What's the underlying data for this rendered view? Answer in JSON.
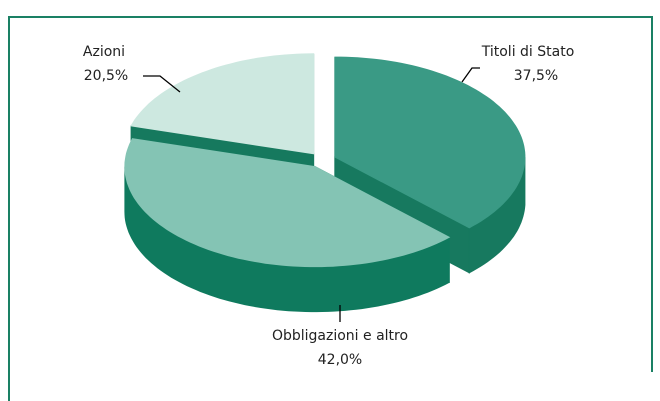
{
  "chart_data": {
    "type": "pie",
    "categories": [
      "Titoli di Stato",
      "Obbligazioni e altro",
      "Azioni"
    ],
    "values": [
      37.5,
      42.0,
      20.5
    ],
    "value_labels": [
      "37,5%",
      "42,0%",
      "20,5%"
    ],
    "colors": [
      "#3a9a85",
      "#84c4b4",
      "#cde8e0"
    ],
    "side_colors": [
      "#17795f",
      "#0f7a5e",
      "#16795e"
    ]
  }
}
